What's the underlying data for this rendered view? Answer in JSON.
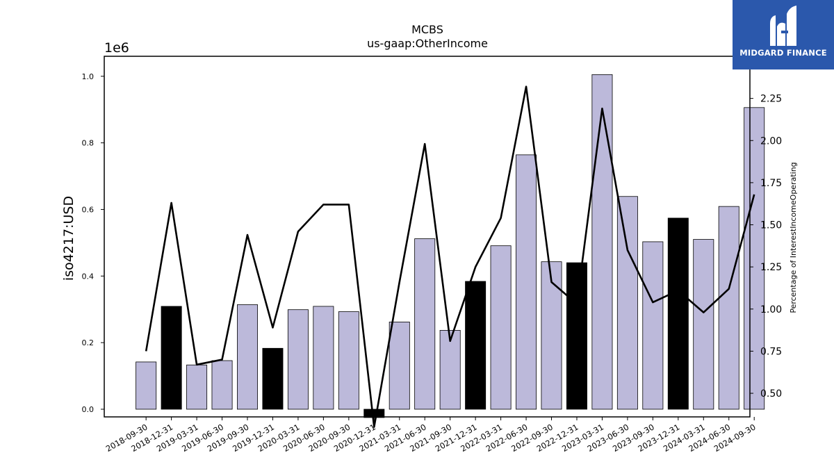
{
  "brand": {
    "name": "MIDGARD FINANCE",
    "color": "#2b58ac"
  },
  "chart_data": {
    "type": "bar",
    "title": "MCBS",
    "subtitle": "us-gaap:OtherIncome",
    "ylabel": "iso4217:USD",
    "y_offset_label": "1e6",
    "y2label": "Percentage of InterestIncomeOperating",
    "categories": [
      "2018-09-30",
      "2018-12-31",
      "2019-03-31",
      "2019-06-30",
      "2019-09-30",
      "2019-12-31",
      "2020-03-31",
      "2020-06-30",
      "2020-09-30",
      "2020-12-31",
      "2021-03-31",
      "2021-06-30",
      "2021-09-30",
      "2021-12-31",
      "2022-03-31",
      "2022-06-30",
      "2022-09-30",
      "2022-12-31",
      "2023-03-31",
      "2023-06-30",
      "2023-09-30",
      "2023-12-31",
      "2024-03-31",
      "2024-06-30",
      "2024-09-30"
    ],
    "ylim": [
      -0.023,
      1.06
    ],
    "yticks": [
      "0.0",
      "0.2",
      "0.4",
      "0.6",
      "0.8",
      "1.0"
    ],
    "y2lim": [
      0.36,
      2.5
    ],
    "y2ticks": [
      "0.50",
      "0.75",
      "1.00",
      "1.25",
      "1.50",
      "1.75",
      "2.00",
      "2.25"
    ],
    "series": [
      {
        "kind": "bar",
        "values": [
          0.142,
          0.309,
          0.133,
          0.146,
          0.314,
          0.183,
          0.299,
          0.309,
          0.293,
          -0.025,
          0.262,
          0.512,
          0.237,
          0.384,
          0.491,
          0.764,
          0.443,
          0.44,
          1.005,
          0.639,
          0.503,
          0.574,
          0.51,
          0.609,
          0.906
        ],
        "highlight": [
          false,
          true,
          false,
          false,
          false,
          true,
          false,
          false,
          false,
          true,
          false,
          false,
          false,
          true,
          false,
          false,
          false,
          true,
          false,
          false,
          false,
          true,
          false,
          false,
          false
        ],
        "color": "#bcb9da",
        "highlight_color": "#000000"
      },
      {
        "kind": "line",
        "axis": "right",
        "values": [
          0.75,
          1.63,
          0.67,
          0.7,
          1.44,
          0.89,
          1.46,
          1.62,
          1.62,
          0.3,
          1.16,
          1.98,
          0.81,
          1.25,
          1.54,
          2.32,
          1.16,
          1.03,
          2.19,
          1.35,
          1.04,
          1.11,
          0.98,
          1.12,
          1.68
        ],
        "color": "#000000"
      }
    ],
    "grid": false,
    "legend": "none"
  }
}
